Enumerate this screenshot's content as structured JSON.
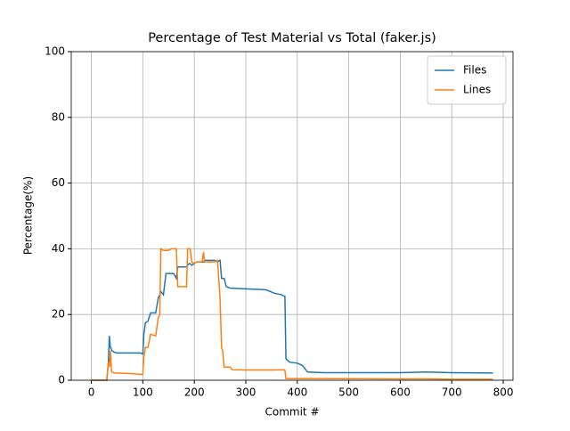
{
  "chart_data": {
    "type": "line",
    "title": "Percentage of Test Material vs Total (faker.js)",
    "x_label": "Commit #",
    "y_label": "Percentage(%)",
    "x": [
      0,
      30,
      33,
      35,
      37,
      39,
      40,
      45,
      50,
      80,
      95,
      100,
      102,
      105,
      110,
      115,
      125,
      130,
      133,
      135,
      140,
      145,
      150,
      155,
      160,
      165,
      168,
      170,
      185,
      187,
      190,
      192,
      195,
      200,
      205,
      215,
      218,
      220,
      240,
      245,
      250,
      253,
      255,
      258,
      262,
      270,
      273,
      300,
      330,
      340,
      355,
      370,
      375,
      376,
      378,
      382,
      385,
      400,
      410,
      420,
      450,
      600,
      650,
      700,
      780
    ],
    "series": [
      {
        "name": "Files",
        "color": "#1f77b4",
        "values": [
          0,
          0,
          5,
          13.5,
          10,
          9.5,
          9,
          8.5,
          8.3,
          8.3,
          8.3,
          8,
          14,
          17.5,
          18,
          20.5,
          20.5,
          25,
          26,
          27,
          26,
          32.5,
          32.5,
          32.5,
          32.5,
          31,
          34.5,
          34.5,
          34.5,
          35,
          35.5,
          35.5,
          35,
          35.5,
          36,
          36,
          36,
          36.5,
          36.5,
          36,
          36.5,
          31,
          31,
          31,
          28.5,
          28,
          28,
          27.8,
          27.6,
          27.5,
          26.5,
          26,
          25.5,
          25.5,
          6.5,
          6,
          5.5,
          5.2,
          4.5,
          2.5,
          2.3,
          2.3,
          2.5,
          2.3,
          2.2
        ]
      },
      {
        "name": "Lines",
        "color": "#ff7f0e",
        "values": [
          0,
          0,
          5.5,
          4,
          9,
          3,
          2.5,
          2.2,
          2.2,
          2,
          1.8,
          1.8,
          7,
          10,
          10,
          14,
          13.5,
          19,
          20,
          40,
          39.5,
          39.5,
          39.5,
          40,
          40,
          40,
          28.5,
          28.5,
          28.5,
          40,
          40,
          40,
          36,
          35.5,
          36,
          36,
          39,
          36,
          36,
          36.5,
          25,
          10,
          9,
          4,
          4,
          4,
          3.2,
          3.1,
          3.1,
          3.1,
          3.1,
          3.2,
          3.2,
          3,
          0.5,
          0.5,
          0.5,
          0.5,
          0.5,
          0.5,
          0.5,
          0.4,
          0.4,
          0.3,
          0.3
        ]
      }
    ],
    "xlim": [
      -39,
      819
    ],
    "ylim": [
      0,
      100
    ],
    "xticks": [
      0,
      100,
      200,
      300,
      400,
      500,
      600,
      700,
      800
    ],
    "yticks": [
      0,
      20,
      40,
      60,
      80,
      100
    ],
    "grid": true,
    "legend": "upper right"
  }
}
